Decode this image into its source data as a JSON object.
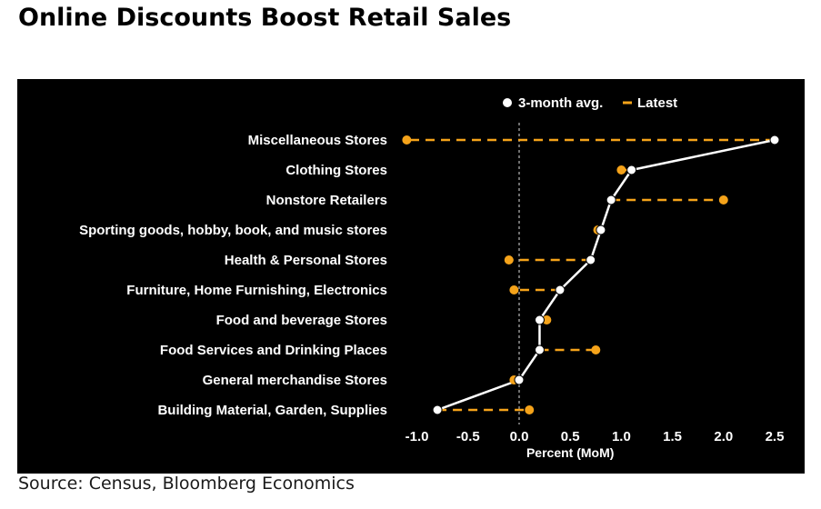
{
  "title": "Online Discounts Boost Retail Sales",
  "source": "Source: Census, Bloomberg Economics",
  "colors": {
    "background": "#000000",
    "avg": "#ffffff",
    "latest": "#f5a31a"
  },
  "chart_data": {
    "type": "dot-plot",
    "title": "Online Discounts Boost Retail Sales",
    "xlabel": "Percent (MoM)",
    "ylabel": "",
    "xlim": [
      -1.0,
      2.5
    ],
    "xticks": [
      -1.0,
      -0.5,
      0.0,
      0.5,
      1.0,
      1.5,
      2.0,
      2.5
    ],
    "xtick_labels": [
      "-1.0",
      "-0.5",
      "0.0",
      "0.5",
      "1.0",
      "1.5",
      "2.0",
      "2.5"
    ],
    "grid": false,
    "reference_line": 0,
    "legend": [
      "3-month avg.",
      "Latest"
    ],
    "legend_position": "top-right",
    "categories": [
      "Miscellaneous Stores",
      "Clothing Stores",
      "Nonstore Retailers",
      "Sporting goods, hobby, book, and music stores",
      "Health & Personal Stores",
      "Furniture, Home Furnishing, Electronics",
      "Food and beverage Stores",
      "Food Services and Drinking Places",
      "General merchandise Stores",
      "Building Material, Garden, Supplies"
    ],
    "series": [
      {
        "name": "3-month avg.",
        "values": [
          2.5,
          1.1,
          0.9,
          0.8,
          0.7,
          0.4,
          0.2,
          0.2,
          0.0,
          -0.8
        ]
      },
      {
        "name": "Latest",
        "values": [
          -1.1,
          1.0,
          2.0,
          0.77,
          -0.1,
          -0.05,
          0.27,
          0.75,
          -0.05,
          0.1
        ]
      }
    ]
  }
}
